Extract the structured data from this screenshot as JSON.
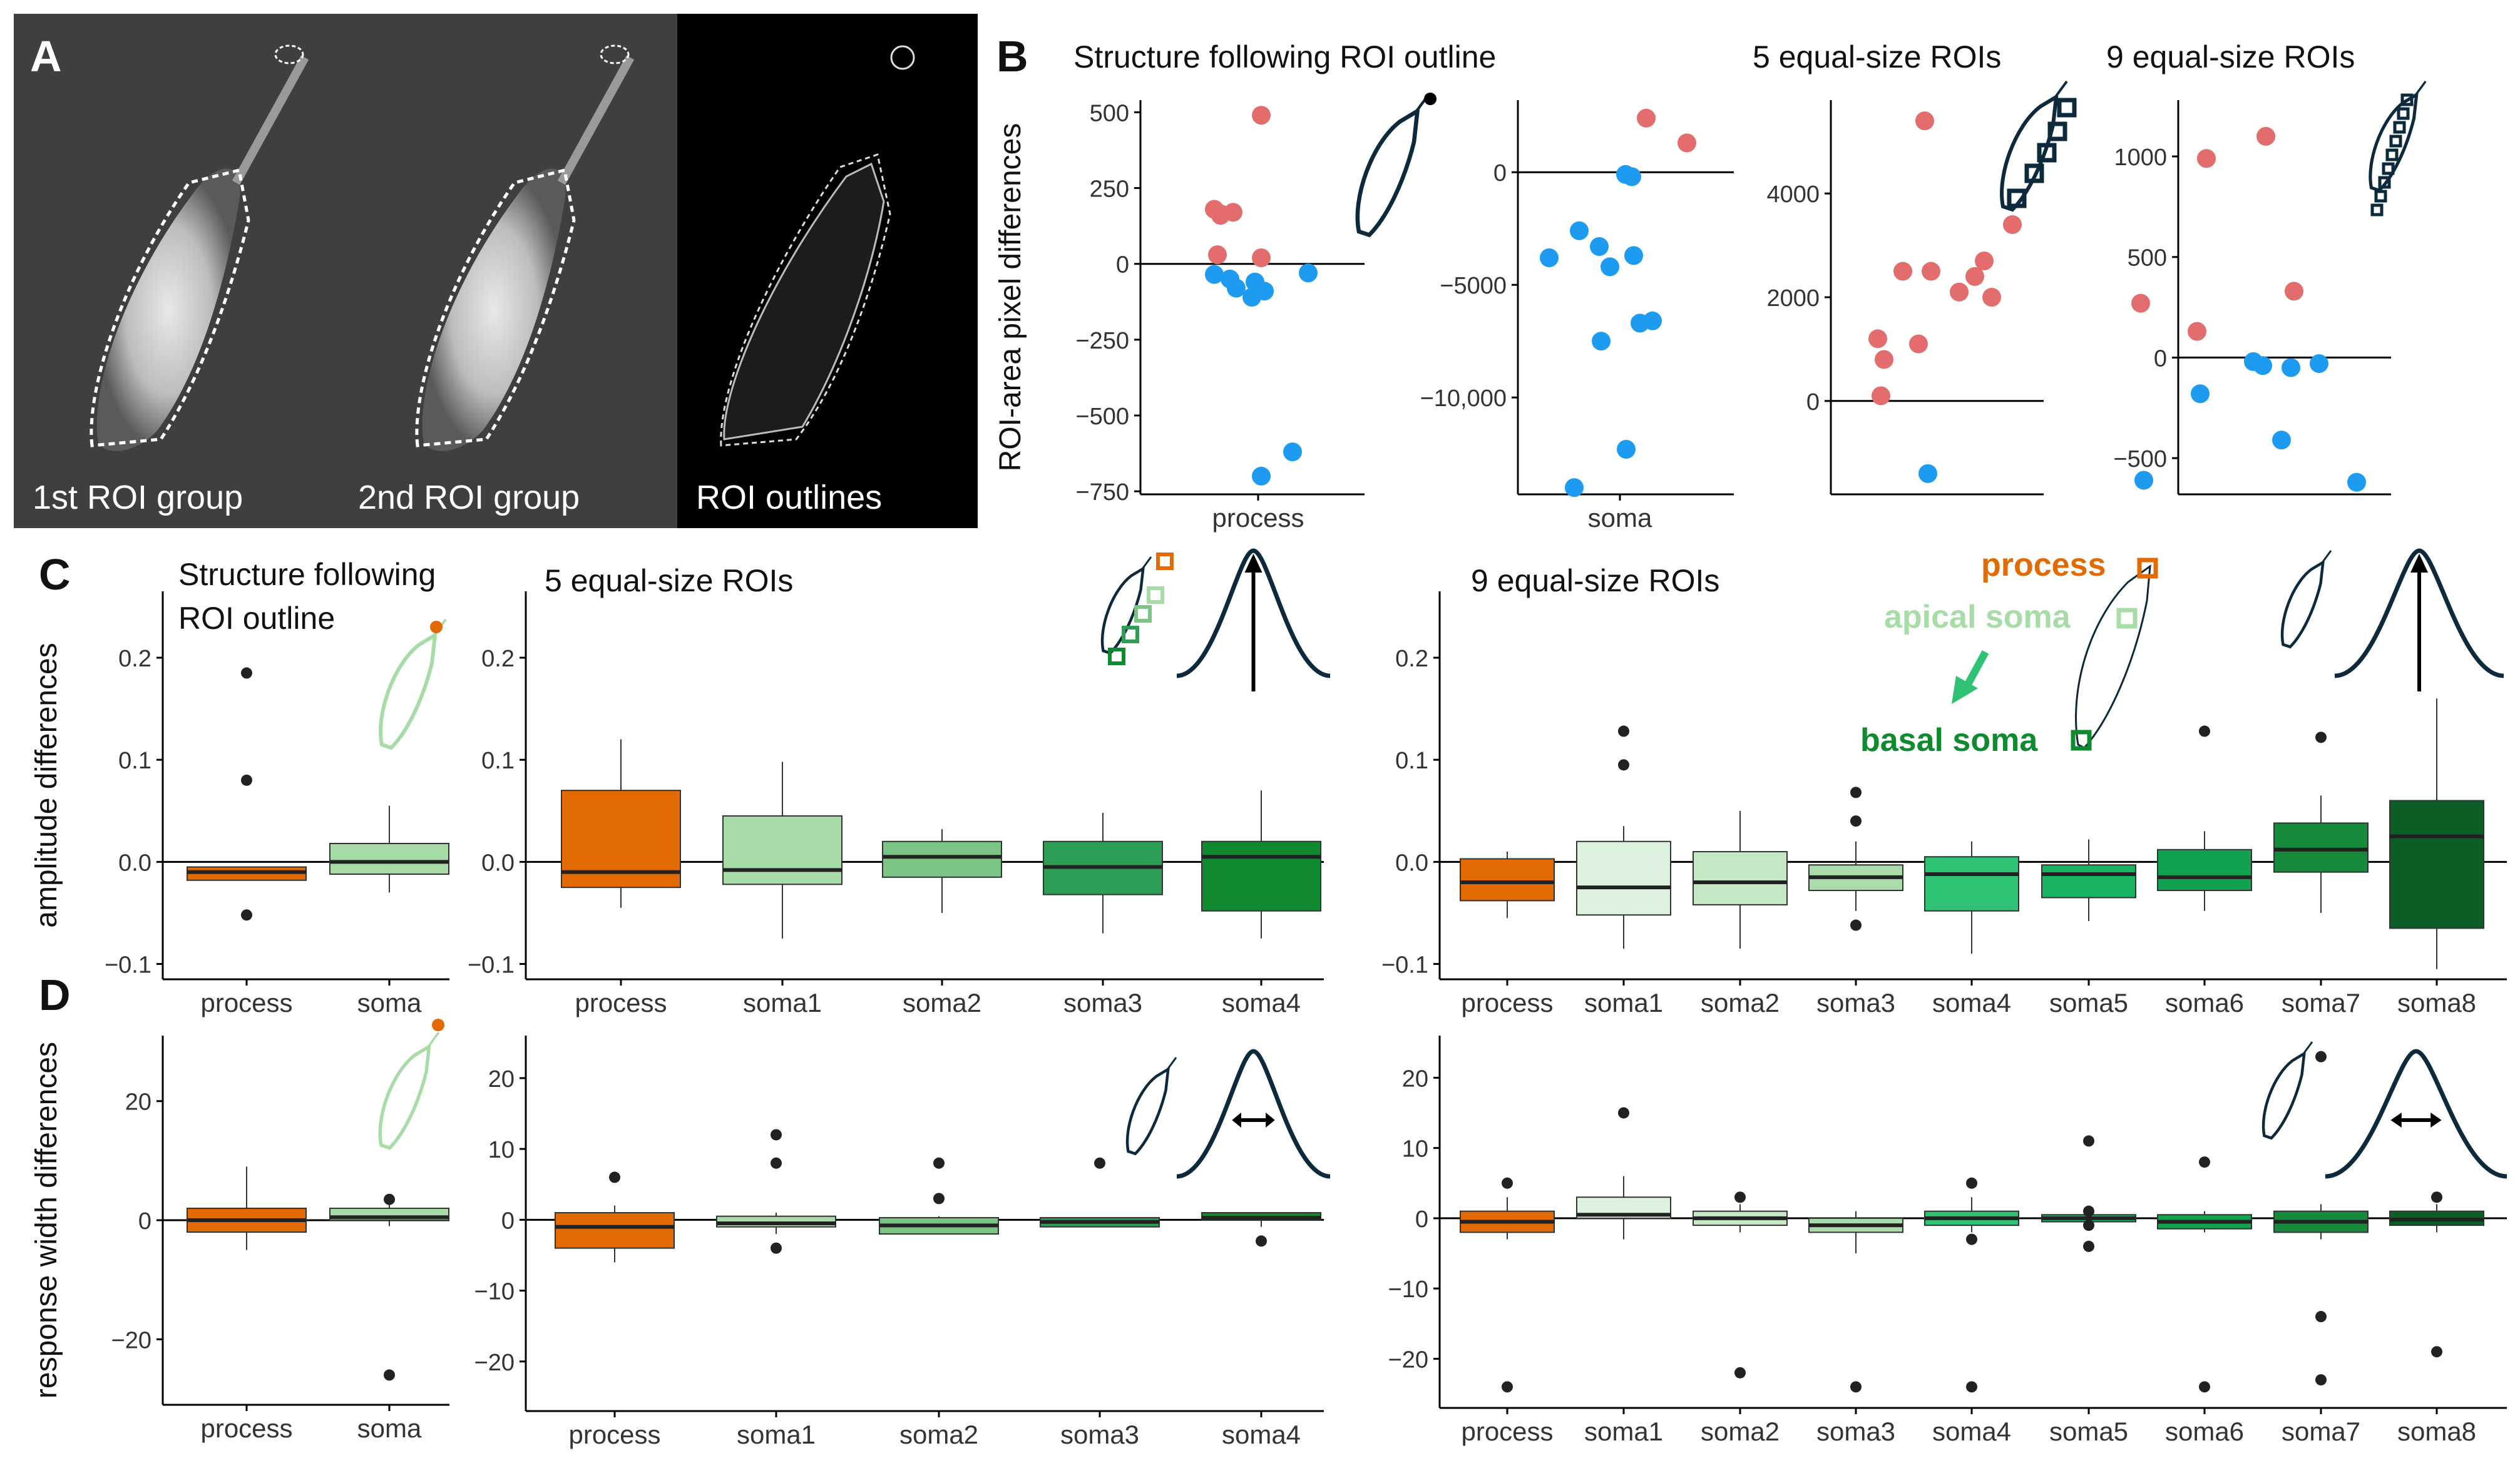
{
  "panel_letters": {
    "A": "A",
    "B": "B",
    "C": "C",
    "D": "D"
  },
  "panelA": {
    "labels": [
      "1st ROI group",
      "2nd ROI group",
      "ROI outlines"
    ]
  },
  "colors": {
    "red": "#E36C6C",
    "blue": "#1D9BF0",
    "process": "#E36A00",
    "soma_light": "#A7DCA6",
    "dark_navy": "#0C2A3B",
    "soma1": "#A7DCA6",
    "soma2": "#7CC386",
    "soma3": "#2E9E55",
    "soma4": "#108A2E",
    "s9_1": "#DDF2DD",
    "s9_2": "#C6E8C7",
    "s9_3": "#A8DCAA",
    "s9_4": "#2FC274",
    "s9_5": "#18B462",
    "s9_6": "#10A250",
    "s9_7": "#148A3A",
    "s9_8": "#0A5E26"
  },
  "chart_data": [
    {
      "id": "B1",
      "type": "scatter",
      "title": "Structure following ROI outline",
      "ylabel": "ROI-area pixel differences",
      "categories": [
        "process"
      ],
      "yticks": [
        500,
        250,
        0,
        -250,
        -500,
        -750
      ],
      "ytick_labels": [
        "500",
        "250",
        "0",
        "−250",
        "−500",
        "−750"
      ],
      "ylim": [
        -760,
        540
      ],
      "points": [
        {
          "y": 490,
          "c": "red"
        },
        {
          "y": 180,
          "c": "red"
        },
        {
          "y": 165,
          "c": "red"
        },
        {
          "y": 170,
          "c": "red"
        },
        {
          "y": 160,
          "c": "red"
        },
        {
          "y": 30,
          "c": "red"
        },
        {
          "y": 20,
          "c": "red"
        },
        {
          "y": -35,
          "c": "blue"
        },
        {
          "y": -50,
          "c": "blue"
        },
        {
          "y": -60,
          "c": "blue"
        },
        {
          "y": -80,
          "c": "blue"
        },
        {
          "y": -90,
          "c": "blue"
        },
        {
          "y": -30,
          "c": "blue"
        },
        {
          "y": -110,
          "c": "blue"
        },
        {
          "y": -620,
          "c": "blue"
        },
        {
          "y": -700,
          "c": "blue"
        }
      ]
    },
    {
      "id": "B2",
      "type": "scatter",
      "title": "",
      "categories": [
        "soma"
      ],
      "yticks": [
        0,
        -5000,
        -10000
      ],
      "ytick_labels": [
        "0",
        "−5000",
        "−10,000"
      ],
      "ylim": [
        -14300,
        3200
      ],
      "points": [
        {
          "y": 2400,
          "c": "red"
        },
        {
          "y": 1300,
          "c": "red"
        },
        {
          "y": -100,
          "c": "blue"
        },
        {
          "y": -200,
          "c": "blue"
        },
        {
          "y": -2600,
          "c": "blue"
        },
        {
          "y": -3300,
          "c": "blue"
        },
        {
          "y": -3700,
          "c": "blue"
        },
        {
          "y": -3800,
          "c": "blue"
        },
        {
          "y": -4200,
          "c": "blue"
        },
        {
          "y": -6600,
          "c": "blue"
        },
        {
          "y": -6700,
          "c": "blue"
        },
        {
          "y": -7500,
          "c": "blue"
        },
        {
          "y": -12300,
          "c": "blue"
        },
        {
          "y": -14000,
          "c": "blue"
        }
      ]
    },
    {
      "id": "B3",
      "type": "scatter",
      "title": "5 equal-size ROIs",
      "categories": [],
      "yticks": [
        4000,
        2000,
        0
      ],
      "ytick_labels": [
        "4000",
        "2000",
        "0"
      ],
      "ylim": [
        -1800,
        5800
      ],
      "points": [
        {
          "y": 5400,
          "c": "red"
        },
        {
          "y": 3400,
          "c": "red"
        },
        {
          "y": 2700,
          "c": "red"
        },
        {
          "y": 2500,
          "c": "red"
        },
        {
          "y": 2500,
          "c": "red"
        },
        {
          "y": 2400,
          "c": "red"
        },
        {
          "y": 2100,
          "c": "red"
        },
        {
          "y": 2000,
          "c": "red"
        },
        {
          "y": 1200,
          "c": "red"
        },
        {
          "y": 1100,
          "c": "red"
        },
        {
          "y": 800,
          "c": "red"
        },
        {
          "y": 100,
          "c": "red"
        },
        {
          "y": -1400,
          "c": "blue"
        }
      ]
    },
    {
      "id": "B4",
      "type": "scatter",
      "title": "9 equal-size ROIs",
      "categories": [],
      "yticks": [
        1000,
        500,
        0,
        -500
      ],
      "ytick_labels": [
        "1000",
        "500",
        "0",
        "−500"
      ],
      "ylim": [
        -680,
        1280
      ],
      "points": [
        {
          "y": 1100,
          "c": "red"
        },
        {
          "y": 990,
          "c": "red"
        },
        {
          "y": 330,
          "c": "red"
        },
        {
          "y": 270,
          "c": "red"
        },
        {
          "y": 130,
          "c": "red"
        },
        {
          "y": -20,
          "c": "blue"
        },
        {
          "y": -40,
          "c": "blue"
        },
        {
          "y": -50,
          "c": "blue"
        },
        {
          "y": -30,
          "c": "blue"
        },
        {
          "y": -180,
          "c": "blue"
        },
        {
          "y": -410,
          "c": "blue"
        },
        {
          "y": -610,
          "c": "blue"
        },
        {
          "y": -620,
          "c": "blue"
        }
      ]
    },
    {
      "id": "C1",
      "type": "box",
      "title": "Structure following ROI outline",
      "ylabel": "amplitude differences",
      "categories": [
        "process",
        "soma"
      ],
      "yticks": [
        0.2,
        0.1,
        0.0,
        -0.1
      ],
      "ytick_labels": [
        "0.2",
        "0.1",
        "0.0",
        "−0.1"
      ],
      "ylim": [
        -0.115,
        0.265
      ],
      "boxes": [
        {
          "q1": -0.018,
          "med": -0.01,
          "q3": -0.005,
          "lo": -0.018,
          "hi": -0.005,
          "out": [
            0.185,
            0.08,
            -0.052
          ],
          "c": "process"
        },
        {
          "q1": -0.012,
          "med": 0.0,
          "q3": 0.018,
          "lo": -0.03,
          "hi": 0.055,
          "out": [],
          "c": "soma_light"
        }
      ]
    },
    {
      "id": "C2",
      "type": "box",
      "title": "5 equal-size ROIs",
      "categories": [
        "process",
        "soma1",
        "soma2",
        "soma3",
        "soma4"
      ],
      "yticks": [
        0.2,
        0.1,
        0.0,
        -0.1
      ],
      "ytick_labels": [
        "0.2",
        "0.1",
        "0.0",
        "−0.1"
      ],
      "ylim": [
        -0.115,
        0.265
      ],
      "boxes": [
        {
          "q1": -0.025,
          "med": -0.01,
          "q3": 0.07,
          "lo": -0.045,
          "hi": 0.12,
          "out": [],
          "c": "process"
        },
        {
          "q1": -0.022,
          "med": -0.008,
          "q3": 0.045,
          "lo": -0.075,
          "hi": 0.098,
          "out": [],
          "c": "soma1"
        },
        {
          "q1": -0.015,
          "med": 0.005,
          "q3": 0.02,
          "lo": -0.05,
          "hi": 0.032,
          "out": [],
          "c": "soma2"
        },
        {
          "q1": -0.032,
          "med": -0.005,
          "q3": 0.02,
          "lo": -0.07,
          "hi": 0.048,
          "out": [],
          "c": "soma3"
        },
        {
          "q1": -0.048,
          "med": 0.005,
          "q3": 0.02,
          "lo": -0.075,
          "hi": 0.07,
          "out": [],
          "c": "soma4"
        }
      ]
    },
    {
      "id": "C3",
      "type": "box",
      "title": "9 equal-size ROIs",
      "categories": [
        "process",
        "soma1",
        "soma2",
        "soma3",
        "soma4",
        "soma5",
        "soma6",
        "soma7",
        "soma8"
      ],
      "yticks": [
        0.2,
        0.1,
        0.0,
        -0.1
      ],
      "ytick_labels": [
        "0.2",
        "0.1",
        "0.0",
        "−0.1"
      ],
      "ylim": [
        -0.115,
        0.265
      ],
      "boxes": [
        {
          "q1": -0.038,
          "med": -0.02,
          "q3": 0.003,
          "lo": -0.055,
          "hi": 0.01,
          "out": [],
          "c": "process"
        },
        {
          "q1": -0.052,
          "med": -0.025,
          "q3": 0.02,
          "lo": -0.085,
          "hi": 0.035,
          "out": [
            0.128,
            0.095
          ],
          "c": "s9_1"
        },
        {
          "q1": -0.042,
          "med": -0.02,
          "q3": 0.01,
          "lo": -0.085,
          "hi": 0.05,
          "out": [],
          "c": "s9_2"
        },
        {
          "q1": -0.028,
          "med": -0.015,
          "q3": -0.003,
          "lo": -0.048,
          "hi": 0.02,
          "out": [
            0.068,
            0.04,
            -0.062
          ],
          "c": "s9_3"
        },
        {
          "q1": -0.048,
          "med": -0.012,
          "q3": 0.005,
          "lo": -0.09,
          "hi": 0.02,
          "out": [],
          "c": "s9_4"
        },
        {
          "q1": -0.035,
          "med": -0.012,
          "q3": -0.003,
          "lo": -0.058,
          "hi": 0.022,
          "out": [],
          "c": "s9_5"
        },
        {
          "q1": -0.028,
          "med": -0.015,
          "q3": 0.012,
          "lo": -0.048,
          "hi": 0.03,
          "out": [
            0.128
          ],
          "c": "s9_6"
        },
        {
          "q1": -0.01,
          "med": 0.012,
          "q3": 0.038,
          "lo": -0.05,
          "hi": 0.065,
          "out": [
            0.122
          ],
          "c": "s9_7"
        },
        {
          "q1": -0.065,
          "med": 0.025,
          "q3": 0.06,
          "lo": -0.105,
          "hi": 0.16,
          "out": [],
          "c": "s9_8"
        }
      ]
    },
    {
      "id": "D1",
      "type": "box",
      "title": "",
      "ylabel": "response width differences",
      "categories": [
        "process",
        "soma"
      ],
      "yticks": [
        20,
        0,
        -20
      ],
      "ytick_labels": [
        "20",
        "0",
        "−20"
      ],
      "ylim": [
        -31,
        31
      ],
      "boxes": [
        {
          "q1": -2,
          "med": 0,
          "q3": 2,
          "lo": -5,
          "hi": 9,
          "out": [],
          "c": "process"
        },
        {
          "q1": 0,
          "med": 0.5,
          "q3": 2,
          "lo": -1,
          "hi": 3,
          "out": [
            3.5,
            -26
          ],
          "c": "soma_light"
        }
      ]
    },
    {
      "id": "D2",
      "type": "box",
      "title": "",
      "categories": [
        "process",
        "soma1",
        "soma2",
        "soma3",
        "soma4"
      ],
      "yticks": [
        20,
        10,
        0,
        -10,
        -20
      ],
      "ytick_labels": [
        "20",
        "10",
        "0",
        "−10",
        "−20"
      ],
      "ylim": [
        -27,
        26
      ],
      "boxes": [
        {
          "q1": -4,
          "med": -1,
          "q3": 1,
          "lo": -6,
          "hi": 2,
          "out": [
            6
          ],
          "c": "process"
        },
        {
          "q1": -1,
          "med": -0.5,
          "q3": 0.5,
          "lo": -2,
          "hi": 1,
          "out": [
            12,
            8,
            -4
          ],
          "c": "soma1"
        },
        {
          "q1": -2,
          "med": -0.8,
          "q3": 0.3,
          "lo": -2,
          "hi": 0.5,
          "out": [
            8,
            3
          ],
          "c": "soma2"
        },
        {
          "q1": -1,
          "med": -0.3,
          "q3": 0.3,
          "lo": -1,
          "hi": 0.3,
          "out": [
            8
          ],
          "c": "soma3"
        },
        {
          "q1": 0,
          "med": 0.3,
          "q3": 1,
          "lo": -1,
          "hi": 1,
          "out": [
            -3
          ],
          "c": "soma4"
        }
      ]
    },
    {
      "id": "D3",
      "type": "box",
      "title": "",
      "categories": [
        "process",
        "soma1",
        "soma2",
        "soma3",
        "soma4",
        "soma5",
        "soma6",
        "soma7",
        "soma8"
      ],
      "yticks": [
        20,
        10,
        0,
        -10,
        -20
      ],
      "ytick_labels": [
        "20",
        "10",
        "0",
        "−10",
        "−20"
      ],
      "ylim": [
        -27,
        26
      ],
      "boxes": [
        {
          "q1": -2,
          "med": -0.5,
          "q3": 1,
          "lo": -3,
          "hi": 3,
          "out": [
            5,
            -24
          ],
          "c": "process"
        },
        {
          "q1": 0,
          "med": 0.5,
          "q3": 3,
          "lo": -3,
          "hi": 6,
          "out": [
            15
          ],
          "c": "s9_1"
        },
        {
          "q1": -1,
          "med": 0,
          "q3": 1,
          "lo": -2,
          "hi": 2,
          "out": [
            3,
            -22
          ],
          "c": "s9_2"
        },
        {
          "q1": -2,
          "med": -1,
          "q3": 0,
          "lo": -5,
          "hi": 1,
          "out": [
            -24
          ],
          "c": "s9_3"
        },
        {
          "q1": -1,
          "med": 0,
          "q3": 1,
          "lo": -2,
          "hi": 3,
          "out": [
            5,
            -3,
            -24
          ],
          "c": "s9_4"
        },
        {
          "q1": -0.5,
          "med": 0,
          "q3": 0.5,
          "lo": -1,
          "hi": 1,
          "out": [
            11,
            1,
            -1,
            -4
          ],
          "c": "s9_5"
        },
        {
          "q1": -1.5,
          "med": -0.5,
          "q3": 0.5,
          "lo": -2,
          "hi": 1,
          "out": [
            8,
            -24
          ],
          "c": "s9_6"
        },
        {
          "q1": -2,
          "med": -0.5,
          "q3": 1,
          "lo": -3,
          "hi": 2,
          "out": [
            23,
            -14,
            -23
          ],
          "c": "s9_7"
        },
        {
          "q1": -1,
          "med": -0.2,
          "q3": 1,
          "lo": -2,
          "hi": 2,
          "out": [
            3,
            -19
          ],
          "c": "s9_8"
        }
      ]
    }
  ],
  "legend": {
    "process": "process",
    "apical": "apical soma",
    "basal": "basal soma"
  }
}
